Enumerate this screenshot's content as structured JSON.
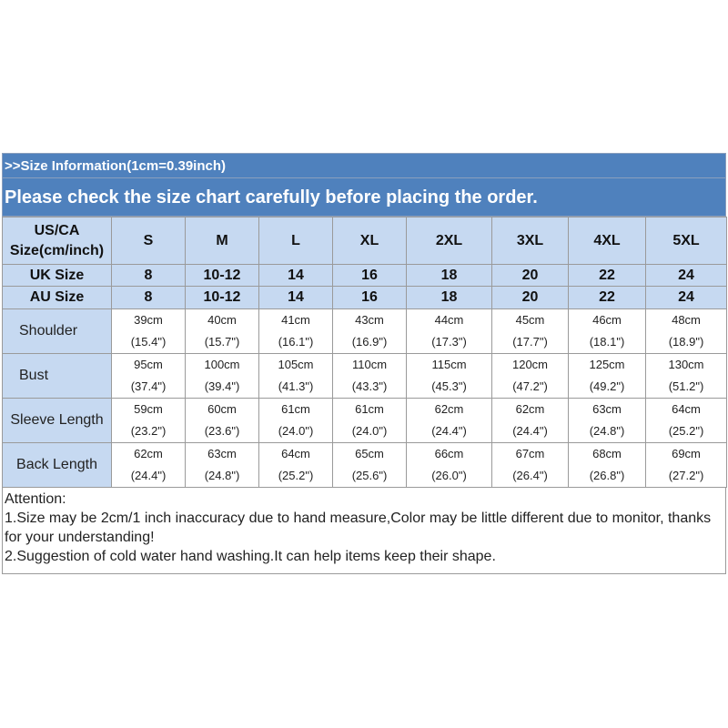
{
  "header": {
    "info": ">>Size Information(1cm=0.39inch)",
    "notice": "Please check the size chart carefully before placing the order."
  },
  "table": {
    "columns": [
      "US/CA\nSize(cm/inch)",
      "S",
      "M",
      "L",
      "XL",
      "2XL",
      "3XL",
      "4XL",
      "5XL"
    ],
    "size_rows": [
      [
        "UK Size",
        "8",
        "10-12",
        "14",
        "16",
        "18",
        "20",
        "22",
        "24"
      ],
      [
        "AU Size",
        "8",
        "10-12",
        "14",
        "16",
        "18",
        "20",
        "22",
        "24"
      ]
    ],
    "measurements": [
      {
        "label": "Shoulder",
        "cells": [
          [
            "39cm",
            "(15.4\")"
          ],
          [
            "40cm",
            "(15.7\")"
          ],
          [
            "41cm",
            "(16.1\")"
          ],
          [
            "43cm",
            "(16.9\")"
          ],
          [
            "44cm",
            "(17.3\")"
          ],
          [
            "45cm",
            "(17.7\")"
          ],
          [
            "46cm",
            "(18.1\")"
          ],
          [
            "48cm",
            "(18.9\")"
          ]
        ]
      },
      {
        "label": "Bust",
        "cells": [
          [
            "95cm",
            "(37.4\")"
          ],
          [
            "100cm",
            "(39.4\")"
          ],
          [
            "105cm",
            "(41.3\")"
          ],
          [
            "110cm",
            "(43.3\")"
          ],
          [
            "115cm",
            "(45.3\")"
          ],
          [
            "120cm",
            "(47.2\")"
          ],
          [
            "125cm",
            "(49.2\")"
          ],
          [
            "130cm",
            "(51.2\")"
          ]
        ]
      },
      {
        "label": "Sleeve Length",
        "cells": [
          [
            "59cm",
            "(23.2\")"
          ],
          [
            "60cm",
            "(23.6\")"
          ],
          [
            "61cm",
            "(24.0\")"
          ],
          [
            "61cm",
            "(24.0\")"
          ],
          [
            "62cm",
            "(24.4\")"
          ],
          [
            "62cm",
            "(24.4\")"
          ],
          [
            "63cm",
            "(24.8\")"
          ],
          [
            "64cm",
            "(25.2\")"
          ]
        ]
      },
      {
        "label": "Back Length",
        "cells": [
          [
            "62cm",
            "(24.4\")"
          ],
          [
            "63cm",
            "(24.8\")"
          ],
          [
            "64cm",
            "(25.2\")"
          ],
          [
            "65cm",
            "(25.6\")"
          ],
          [
            "66cm",
            "(26.0\")"
          ],
          [
            "67cm",
            "(26.4\")"
          ],
          [
            "68cm",
            "(26.8\")"
          ],
          [
            "69cm",
            "(27.2\")"
          ]
        ]
      }
    ]
  },
  "notes": [
    "Attention:",
    "1.Size may be 2cm/1 inch inaccuracy due to hand measure,Color may be little different due to monitor, thanks for your understanding!",
    "2.Suggestion of cold water hand washing.It can help items keep their shape."
  ]
}
